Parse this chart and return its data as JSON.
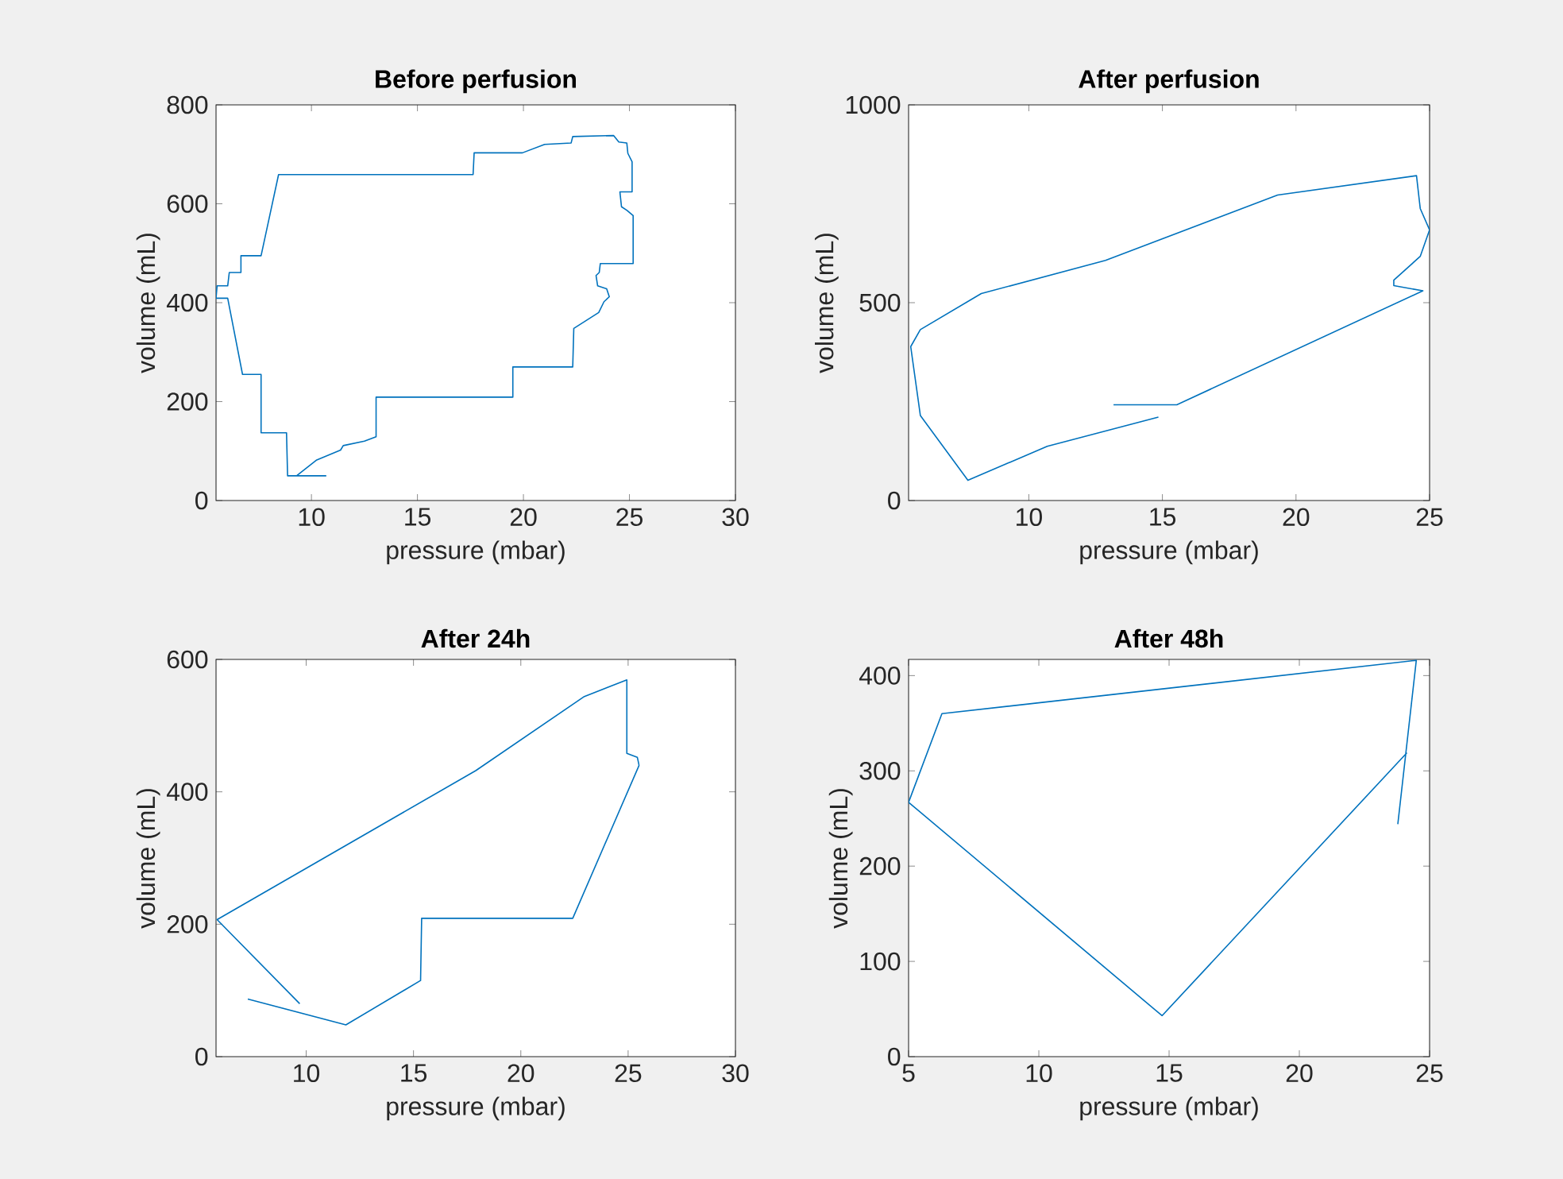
{
  "chart_data": [
    {
      "type": "line",
      "title": "Before perfusion",
      "xlabel": "pressure (mbar)",
      "ylabel": "volume (mL)",
      "xlim": [
        5.5,
        30
      ],
      "ylim": [
        0,
        800
      ],
      "xticks": [
        10,
        15,
        20,
        25,
        30
      ],
      "yticks": [
        0,
        200,
        400,
        600,
        800
      ],
      "series": [
        {
          "color": "#0072bd",
          "x": [
            10.7,
            8.875,
            8.825,
            7.625,
            7.625,
            6.75,
            6.05,
            5.5,
            5.55,
            6.05,
            6.125,
            6.675,
            6.675,
            7.625,
            8.45,
            17.625,
            17.675,
            19.95,
            21.0,
            22.25,
            22.325,
            24.25,
            24.5,
            24.875,
            24.925,
            25.125,
            25.125,
            24.55,
            24.625,
            24.875,
            25.175,
            25.175,
            23.625,
            23.575,
            23.425,
            23.5,
            23.925,
            24.05,
            23.8,
            23.55,
            22.375,
            22.325,
            19.5,
            19.5,
            13.05,
            13.05,
            12.5,
            11.5,
            11.375,
            10.25,
            9.3
          ],
          "values": [
            50,
            50,
            137,
            137,
            255,
            255,
            409,
            409,
            434,
            434,
            461,
            461,
            495,
            495,
            659,
            659,
            703,
            703,
            720,
            723,
            736,
            738,
            725,
            723,
            702,
            685,
            624,
            624,
            594,
            587,
            576,
            479,
            479,
            461,
            455,
            434,
            428,
            412,
            402,
            380,
            348,
            270,
            270,
            209,
            209,
            129,
            120,
            111,
            102,
            82,
            50
          ]
        }
      ]
    },
    {
      "type": "line",
      "title": "After perfusion",
      "xlabel": "pressure (mbar)",
      "ylabel": "volume (mL)",
      "xlim": [
        5.5,
        25
      ],
      "ylim": [
        0,
        1000
      ],
      "xticks": [
        10,
        15,
        20,
        25
      ],
      "yticks": [
        0,
        500,
        1000
      ],
      "series": [
        {
          "color": "#0072bd",
          "x": [
            14.85,
            10.69,
            7.72,
            5.94,
            5.58,
            5.94,
            8.22,
            12.87,
            19.31,
            24.51,
            24.65,
            25,
            24.65,
            23.66,
            23.66,
            24.75,
            15.54,
            13.17
          ],
          "values": [
            211,
            137,
            51,
            215,
            389,
            432,
            523,
            607,
            772,
            821,
            738,
            684,
            617,
            557,
            543,
            530,
            242,
            242
          ]
        }
      ]
    },
    {
      "type": "line",
      "title": "After 24h",
      "xlabel": "pressure (mbar)",
      "ylabel": "volume (mL)",
      "xlim": [
        5.8,
        30
      ],
      "ylim": [
        0,
        600
      ],
      "xticks": [
        10,
        15,
        20,
        25,
        30
      ],
      "yticks": [
        0,
        200,
        400,
        600
      ],
      "series": [
        {
          "color": "#0072bd",
          "x": [
            9.7,
            5.85,
            17.9,
            22.96,
            24.94,
            24.94,
            25.43,
            25.51,
            22.42,
            15.38,
            15.33,
            11.85,
            7.28
          ],
          "values": [
            80,
            207,
            432,
            544,
            569,
            458,
            452,
            440,
            209,
            209,
            115,
            48,
            87
          ]
        }
      ]
    },
    {
      "type": "line",
      "title": "After 48h",
      "xlabel": "pressure (mbar)",
      "ylabel": "volume (mL)",
      "xlim": [
        5,
        25
      ],
      "ylim": [
        0,
        417
      ],
      "xticks": [
        5,
        10,
        15,
        20,
        25
      ],
      "yticks": [
        0,
        100,
        200,
        300,
        400
      ],
      "series": [
        {
          "color": "#0072bd",
          "x": [
            23.78,
            24.49,
            6.28,
            5.0,
            14.73,
            24.13
          ],
          "values": [
            244,
            416,
            360,
            267,
            43,
            319
          ]
        }
      ]
    }
  ]
}
